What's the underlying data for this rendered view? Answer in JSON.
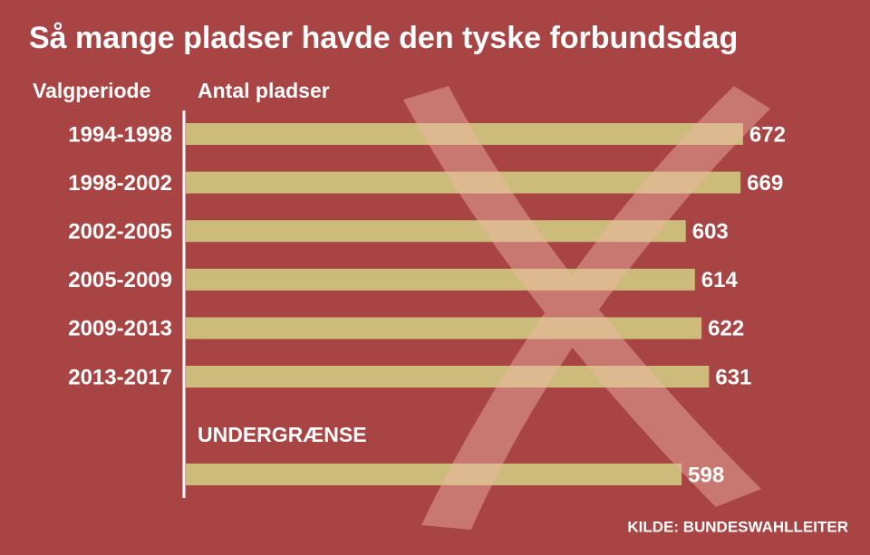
{
  "chart_data": {
    "type": "bar",
    "orientation": "horizontal",
    "title": "Så mange pladser havde den tyske forbundsdag",
    "category_label": "Valgperiode",
    "value_label": "Antal pladser",
    "categories": [
      "1994-1998",
      "1998-2002",
      "2002-2005",
      "2005-2009",
      "2009-2013",
      "2013-2017"
    ],
    "values": [
      672,
      669,
      603,
      614,
      622,
      631
    ],
    "color": "#cdbb7b",
    "reference": {
      "label": "UNDERGRÆNSE",
      "value": 598
    },
    "source": "KILDE: BUNDESWAHLLEITER"
  }
}
